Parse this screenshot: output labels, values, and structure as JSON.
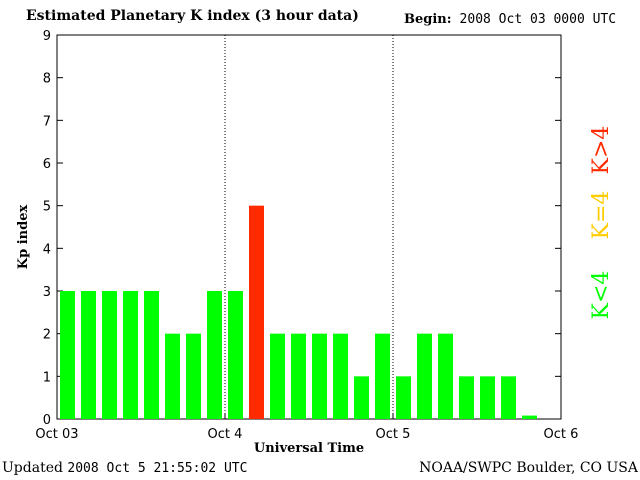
{
  "header": {
    "title": "Estimated Planetary K index (3 hour data)",
    "begin_label": "Begin:",
    "begin_value": "2008 Oct 03 0000 UTC"
  },
  "footer": {
    "updated_label": "Updated",
    "updated_value": "2008 Oct  5 21:55:02 UTC",
    "organization": "NOAA/SWPC Boulder, CO USA"
  },
  "colors": {
    "low": "#00ff00",
    "equal": "#ffcc00",
    "high": "#ff2a00"
  },
  "chart_data": {
    "type": "bar",
    "xlabel": "Universal Time",
    "ylabel": "Kp index",
    "ylim": [
      0,
      9
    ],
    "yticks": [
      0,
      1,
      2,
      3,
      4,
      5,
      6,
      7,
      8,
      9
    ],
    "x_tick_labels": [
      "Oct 03",
      "Oct 4",
      "Oct 5",
      "Oct 6"
    ],
    "values": [
      3,
      3,
      3,
      3,
      3,
      2,
      2,
      3,
      3,
      5,
      2,
      2,
      2,
      2,
      1,
      2,
      1,
      2,
      2,
      1,
      1,
      1,
      0.08
    ],
    "legend": [
      {
        "label": "K<4",
        "color_key": "low"
      },
      {
        "label": "K=4",
        "color_key": "equal"
      },
      {
        "label": "K>4",
        "color_key": "high"
      }
    ]
  }
}
